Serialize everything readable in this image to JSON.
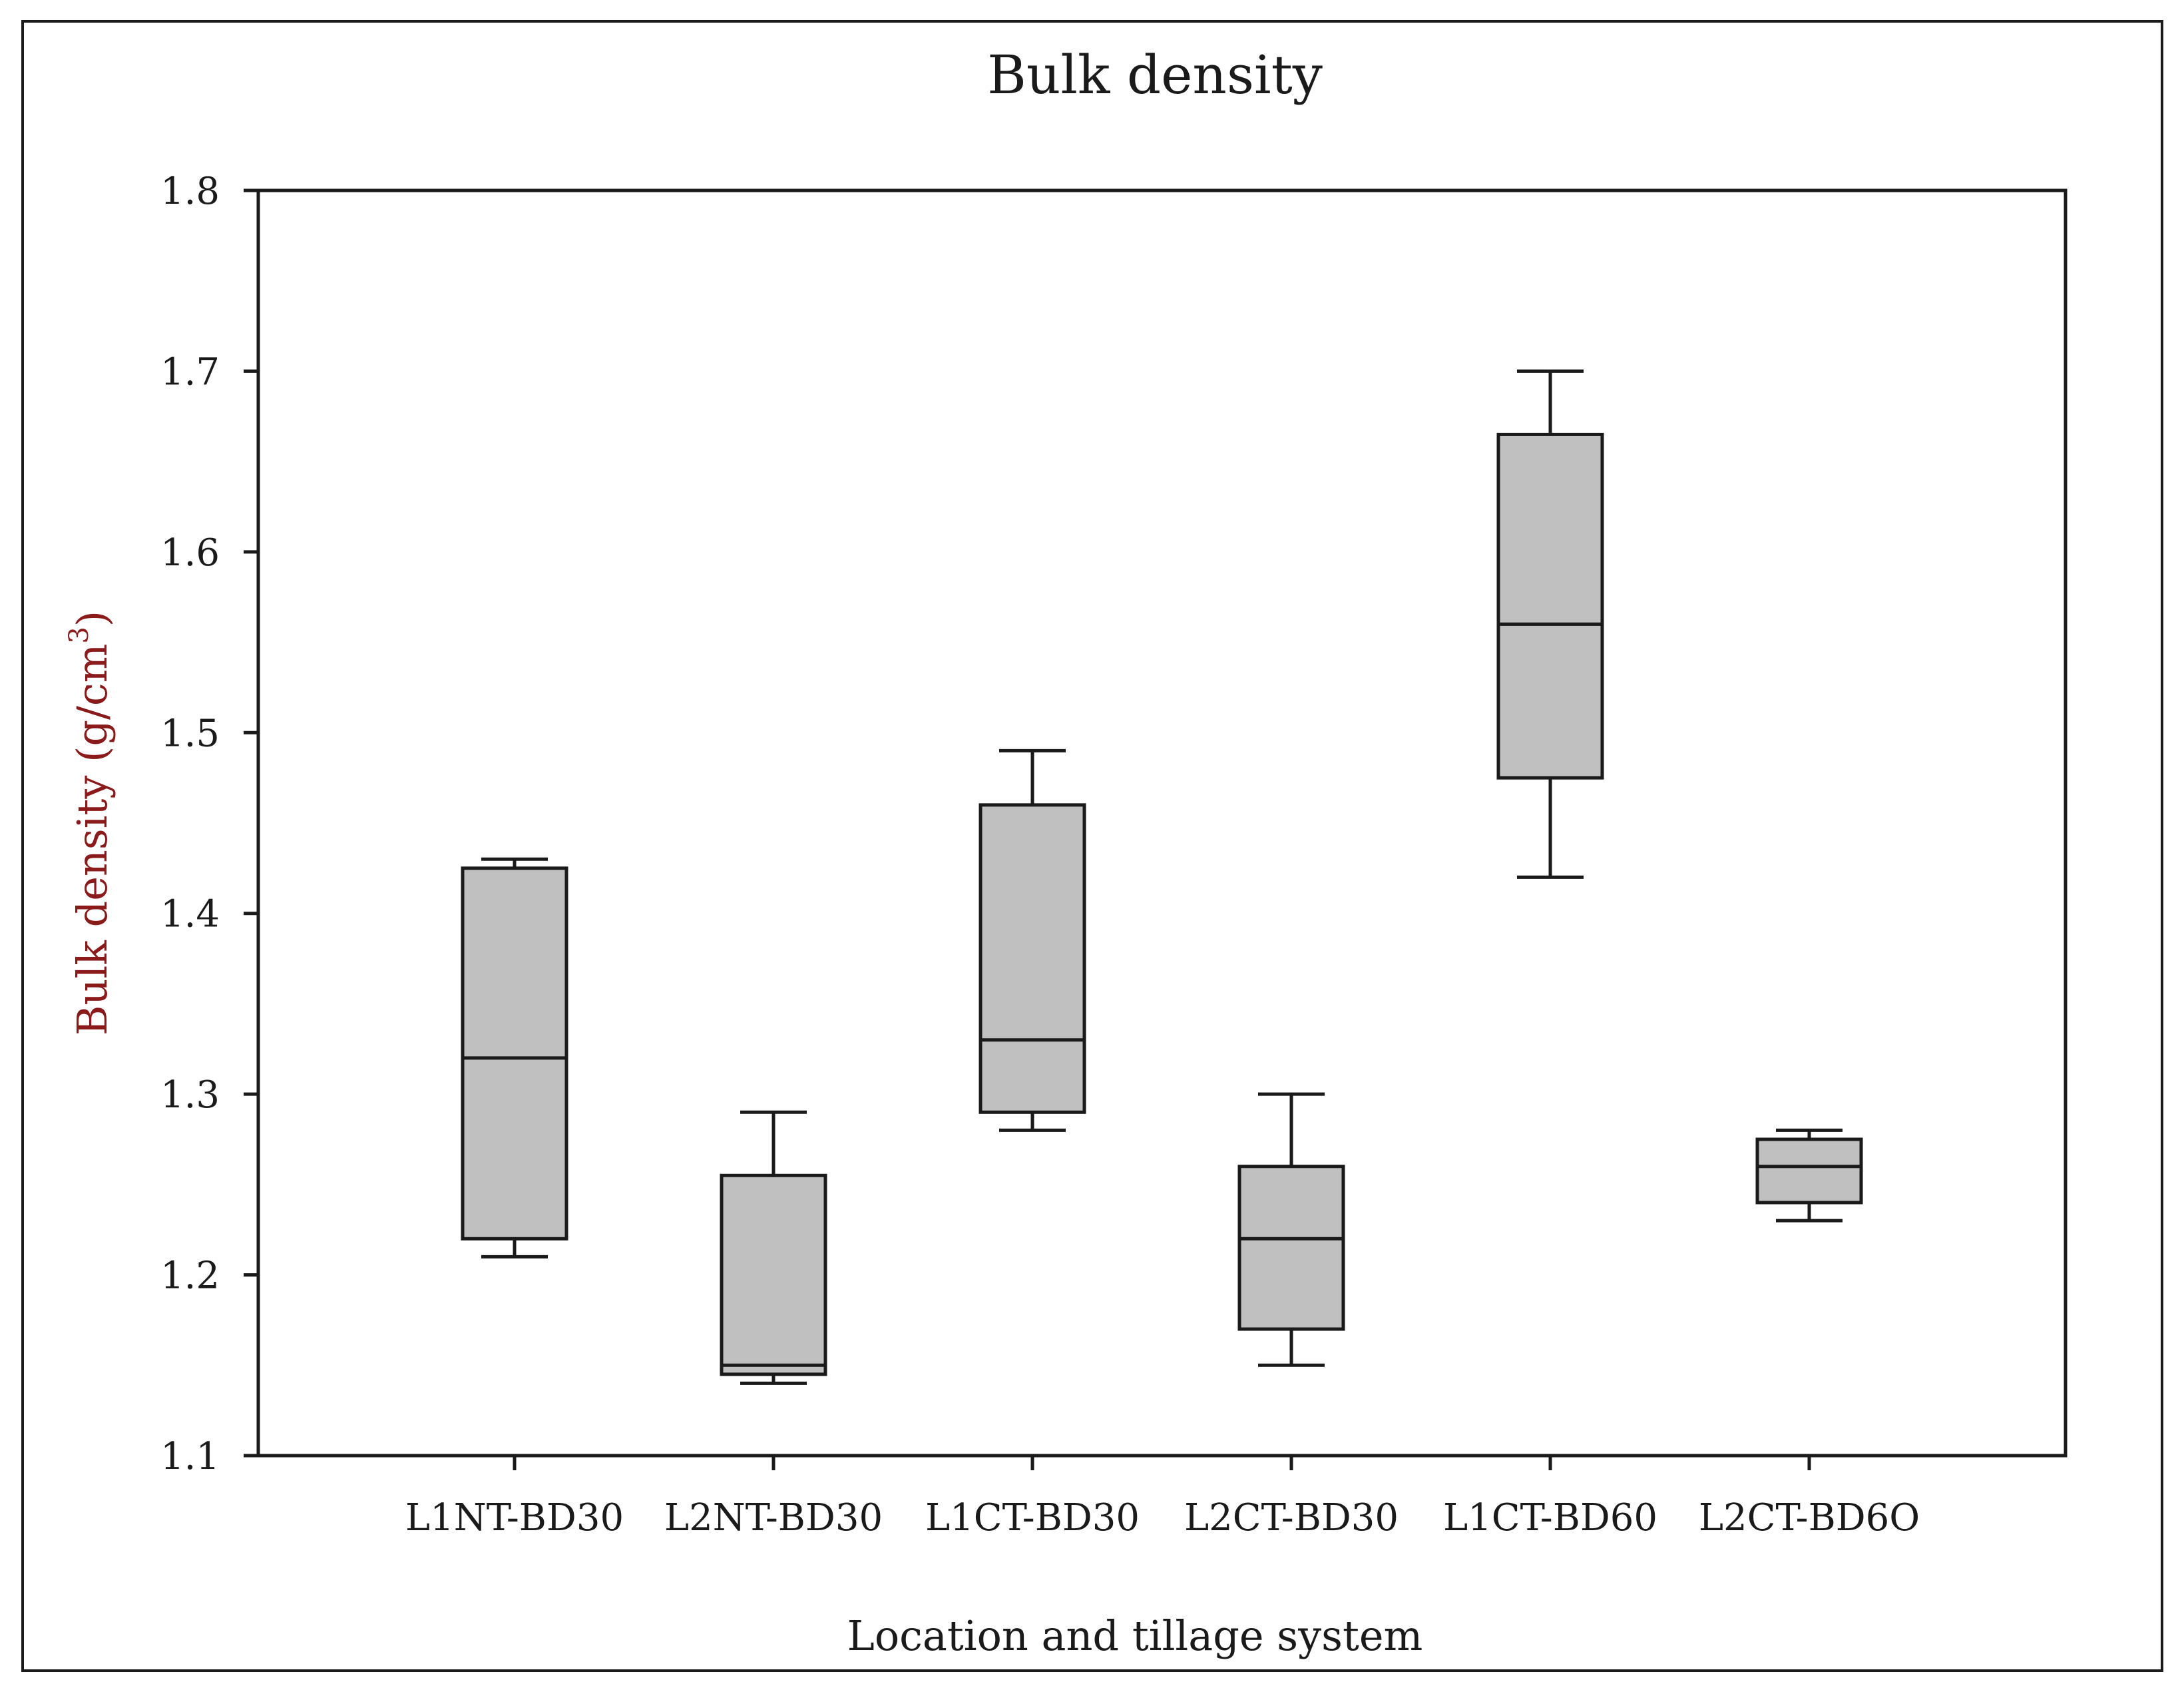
{
  "chart_data": {
    "type": "box",
    "title": "Bulk density",
    "xlabel": "Location and tillage system",
    "ylabel": "Bulk density (g/cm",
    "ylabel_superscript": "3",
    "ylabel_close": ")",
    "ylim": [
      1.1,
      1.8
    ],
    "yticks": [
      1.1,
      1.2,
      1.3,
      1.4,
      1.5,
      1.6,
      1.7,
      1.8
    ],
    "ytick_labels": [
      "1.1",
      "1.2",
      "1.3",
      "1.4",
      "1.5",
      "1.6",
      "1.7",
      "1.8"
    ],
    "categories": [
      "L1NT-BD30",
      "L2NT-BD30",
      "L1CT-BD30",
      "L2CT-BD30",
      "L1CT-BD60",
      "L2CT-BD6O"
    ],
    "boxes": [
      {
        "name": "L1NT-BD30",
        "min": 1.21,
        "q1": 1.22,
        "median": 1.32,
        "q3": 1.425,
        "max": 1.43
      },
      {
        "name": "L2NT-BD30",
        "min": 1.14,
        "q1": 1.145,
        "median": 1.15,
        "q3": 1.255,
        "max": 1.29
      },
      {
        "name": "L1CT-BD30",
        "min": 1.28,
        "q1": 1.29,
        "median": 1.33,
        "q3": 1.46,
        "max": 1.49
      },
      {
        "name": "L2CT-BD30",
        "min": 1.15,
        "q1": 1.17,
        "median": 1.22,
        "q3": 1.26,
        "max": 1.3
      },
      {
        "name": "L1CT-BD60",
        "min": 1.42,
        "q1": 1.475,
        "median": 1.56,
        "q3": 1.665,
        "max": 1.7
      },
      {
        "name": "L2CT-BD6O",
        "min": 1.23,
        "q1": 1.24,
        "median": 1.26,
        "q3": 1.275,
        "max": 1.28
      }
    ],
    "box_fill": "#c0c0c0",
    "line_color": "#1a1a1a",
    "grid": false,
    "legend": "none"
  }
}
